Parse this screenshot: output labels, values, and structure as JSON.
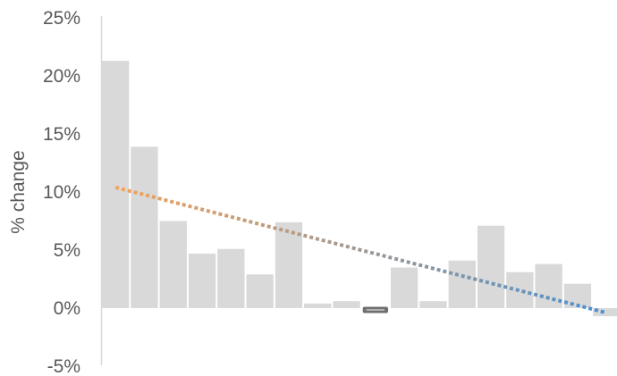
{
  "chart_data": {
    "type": "bar",
    "title": "",
    "xlabel": "",
    "ylabel": "% change",
    "ylim": [
      -5,
      25
    ],
    "yticks": [
      25,
      20,
      15,
      10,
      5,
      0,
      -5
    ],
    "ytick_labels": [
      "25%",
      "20%",
      "15%",
      "10%",
      "5%",
      "0%",
      "-5%"
    ],
    "grid": false,
    "legend": "none",
    "values": [
      21.3,
      13.9,
      7.5,
      4.7,
      5.1,
      2.9,
      7.4,
      0.4,
      0.6,
      -0.5,
      3.5,
      0.6,
      4.1,
      7.1,
      3.1,
      3.8,
      2.1,
      -0.7
    ],
    "highlight_index": 9,
    "trendline": {
      "style": "dotted",
      "start_value": 10.4,
      "end_value": -0.4,
      "start_color": "#f4a259",
      "end_color": "#4a90d0"
    },
    "colors": {
      "bar": "#d9d9d9",
      "highlight_bar": "#6f6f6f",
      "axis": "#d9d9d9",
      "text": "#595959"
    }
  }
}
